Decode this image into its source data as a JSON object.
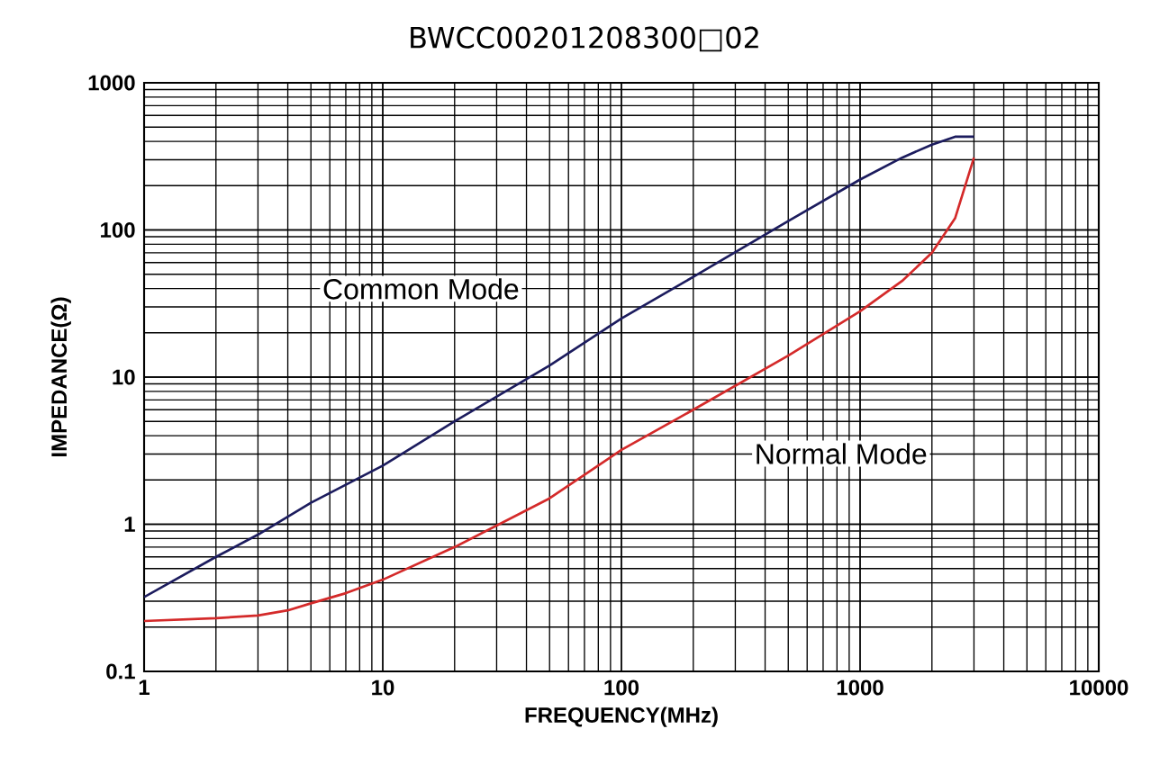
{
  "chart_data": {
    "type": "line",
    "title": "BWCC00201208300□02",
    "xlabel": "FREQUENCY(MHz)",
    "ylabel": "IMPEDANCE(Ω)",
    "log": "xy",
    "grid": true,
    "legend": false,
    "marker": "none",
    "line_style": "solid",
    "xlim": [
      1,
      10000
    ],
    "xticks": [
      1,
      10,
      100,
      1000,
      10000
    ],
    "ylim": [
      0.1,
      1000
    ],
    "yticks": [
      0.1,
      1,
      10,
      100,
      1000
    ],
    "series": [
      {
        "name": "Common Mode",
        "color": "#1c1c5e",
        "x": [
          1,
          2,
          3,
          5,
          10,
          20,
          50,
          100,
          200,
          500,
          1000,
          1500,
          2000,
          2500,
          3000
        ],
        "values": [
          0.32,
          0.6,
          0.85,
          1.4,
          2.5,
          5,
          12,
          25,
          48,
          115,
          220,
          310,
          380,
          430,
          430
        ]
      },
      {
        "name": "Normal Mode",
        "color": "#d42a2a",
        "x": [
          1,
          2,
          3,
          4,
          5,
          7,
          10,
          20,
          50,
          100,
          200,
          500,
          1000,
          1500,
          2000,
          2500,
          3000
        ],
        "values": [
          0.22,
          0.23,
          0.24,
          0.26,
          0.29,
          0.34,
          0.42,
          0.7,
          1.5,
          3.2,
          6,
          14,
          28,
          45,
          70,
          120,
          310
        ]
      }
    ]
  }
}
